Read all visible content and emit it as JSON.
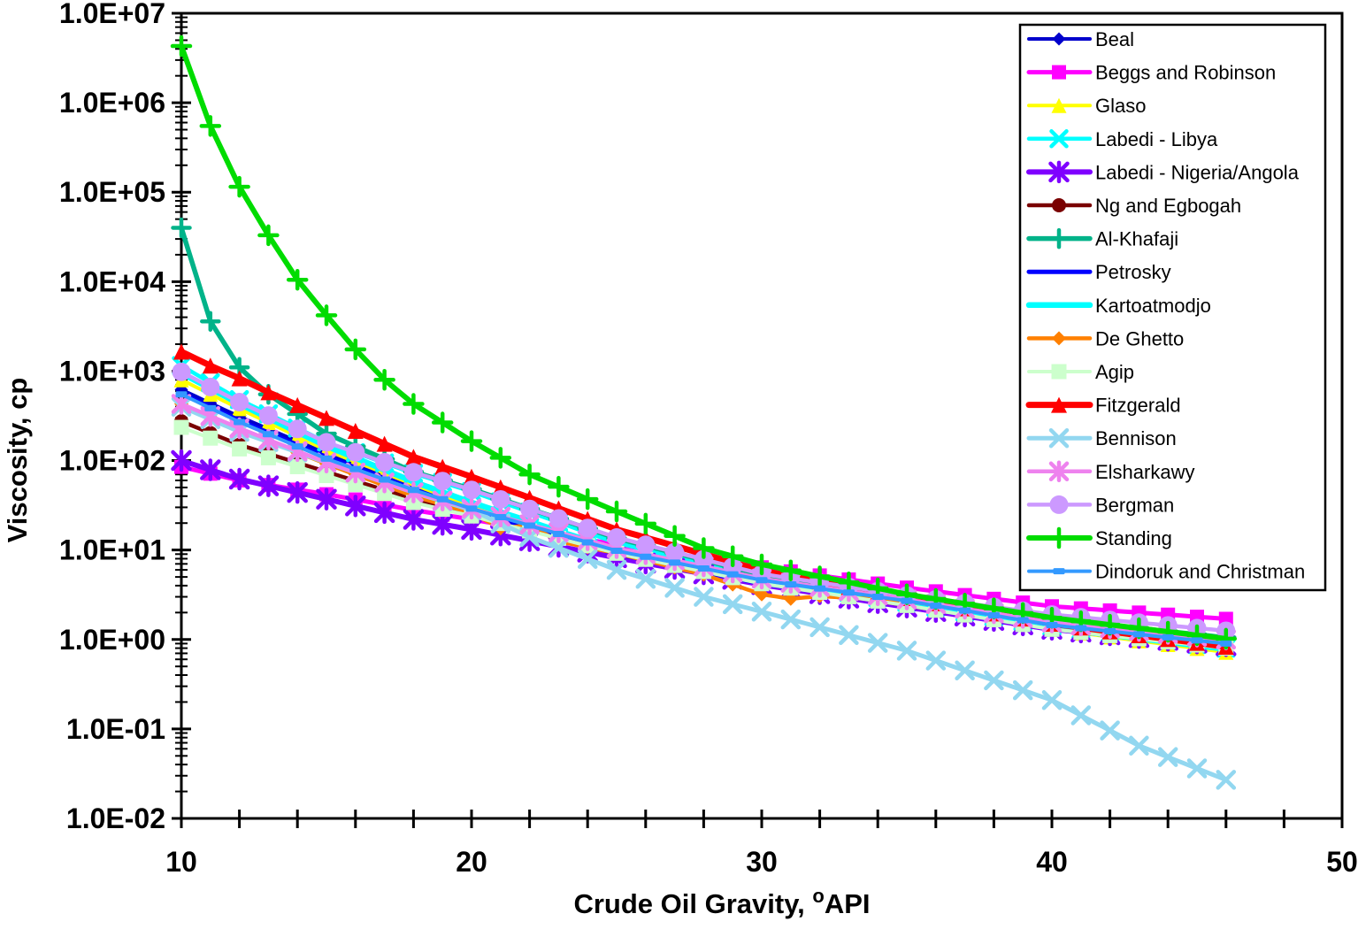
{
  "chart_data": {
    "type": "line",
    "title": "",
    "xlabel": {
      "prefix": "Crude Oil Gravity, ",
      "sup": "o",
      "suffix": "API"
    },
    "ylabel": "Viscosity, cp",
    "x_axis": {
      "min": 10,
      "max": 50,
      "major_ticks": [
        10,
        20,
        30,
        40,
        50
      ],
      "minor_step": 2
    },
    "y_axis": {
      "scale": "log",
      "min": 0.01,
      "max": 10000000,
      "tick_labels": [
        "1.0E+07",
        "1.0E+06",
        "1.0E+05",
        "1.0E+04",
        "1.0E+03",
        "1.0E+02",
        "1.0E+01",
        "1.0E+00",
        "1.0E-01",
        "1.0E-02"
      ]
    },
    "grid": false,
    "legend_position": "upper right",
    "marker_api_step": 1,
    "data_api_range": [
      10,
      46
    ],
    "series": [
      {
        "name": "Beal",
        "color": "#0000CC",
        "marker": "diamond",
        "marker_size": 15,
        "line_width": 4,
        "points": [
          [
            10,
            620
          ],
          [
            12,
            310
          ],
          [
            15,
            120
          ],
          [
            18,
            52
          ],
          [
            20,
            30
          ],
          [
            25,
            9.5
          ],
          [
            30,
            4.4
          ],
          [
            35,
            2.6
          ],
          [
            40,
            1.45
          ],
          [
            46,
            0.92
          ]
        ]
      },
      {
        "name": "Beggs and Robinson",
        "color": "#FF00FF",
        "marker": "square",
        "marker_size": 16,
        "line_width": 5,
        "points": [
          [
            10,
            85
          ],
          [
            12,
            60
          ],
          [
            15,
            42
          ],
          [
            18,
            28
          ],
          [
            20,
            22
          ],
          [
            25,
            11.5
          ],
          [
            30,
            6.4
          ],
          [
            35,
            3.8
          ],
          [
            40,
            2.35
          ],
          [
            46,
            1.7
          ]
        ]
      },
      {
        "name": "Glaso",
        "color": "#FFFF00",
        "marker": "triangle",
        "marker_size": 17,
        "line_width": 4,
        "points": [
          [
            10,
            800
          ],
          [
            12,
            380
          ],
          [
            15,
            130
          ],
          [
            18,
            54
          ],
          [
            20,
            30
          ],
          [
            25,
            9.3
          ],
          [
            30,
            4.3
          ],
          [
            35,
            2.4
          ],
          [
            40,
            1.3
          ],
          [
            46,
            0.72
          ]
        ]
      },
      {
        "name": "Labedi - Libya",
        "color": "#00FFFF",
        "marker": "x",
        "marker_size": 17,
        "line_width": 4.5,
        "points": [
          [
            10,
            1150
          ],
          [
            12,
            480
          ],
          [
            15,
            160
          ],
          [
            18,
            72
          ],
          [
            20,
            45
          ],
          [
            25,
            12
          ],
          [
            30,
            4.9
          ],
          [
            35,
            2.6
          ],
          [
            40,
            1.4
          ],
          [
            46,
            0.8
          ]
        ]
      },
      {
        "name": "Labedi - Nigeria/Angola",
        "color": "#7F00FF",
        "marker": "asterisk",
        "marker_size": 19,
        "line_width": 6,
        "points": [
          [
            10,
            100
          ],
          [
            12,
            62
          ],
          [
            15,
            37
          ],
          [
            18,
            22
          ],
          [
            20,
            17
          ],
          [
            25,
            8.2
          ],
          [
            30,
            4.1
          ],
          [
            35,
            2.3
          ],
          [
            40,
            1.3
          ],
          [
            46,
            0.85
          ]
        ]
      },
      {
        "name": "Ng and Egbogah",
        "color": "#7A0000",
        "marker": "circle",
        "marker_size": 16,
        "line_width": 4.5,
        "points": [
          [
            10,
            275
          ],
          [
            12,
            150
          ],
          [
            15,
            75
          ],
          [
            18,
            37
          ],
          [
            20,
            26
          ],
          [
            25,
            9.5
          ],
          [
            30,
            4.3
          ],
          [
            35,
            2.4
          ],
          [
            40,
            1.35
          ],
          [
            46,
            0.88
          ]
        ]
      },
      {
        "name": "Al-Khafaji",
        "color": "#00B389",
        "marker": "plus",
        "marker_size": 19,
        "line_width": 5.5,
        "points": [
          [
            10,
            40000
          ],
          [
            11,
            3600
          ],
          [
            12,
            1100
          ],
          [
            13,
            550
          ],
          [
            15,
            200
          ],
          [
            18,
            75
          ],
          [
            20,
            48
          ],
          [
            25,
            13.5
          ],
          [
            30,
            5.3
          ],
          [
            35,
            2.9
          ],
          [
            40,
            1.7
          ],
          [
            46,
            1.05
          ]
        ]
      },
      {
        "name": "Petrosky",
        "color": "#0000FF",
        "marker": "none",
        "marker_size": 0,
        "line_width": 5,
        "points": [
          [
            10,
            560
          ],
          [
            12,
            280
          ],
          [
            15,
            110
          ],
          [
            18,
            48
          ],
          [
            20,
            28
          ],
          [
            25,
            9
          ],
          [
            30,
            4.2
          ],
          [
            35,
            2.5
          ],
          [
            40,
            1.4
          ],
          [
            46,
            0.88
          ]
        ]
      },
      {
        "name": "Kartoatmodjo",
        "color": "#00FFFF",
        "marker": "none",
        "marker_size": 0,
        "line_width": 6.5,
        "points": [
          [
            10,
            950
          ],
          [
            12,
            430
          ],
          [
            15,
            145
          ],
          [
            18,
            58
          ],
          [
            20,
            34
          ],
          [
            25,
            10
          ],
          [
            30,
            4.5
          ],
          [
            35,
            2.5
          ],
          [
            40,
            1.35
          ],
          [
            46,
            0.78
          ]
        ]
      },
      {
        "name": "De Ghetto",
        "color": "#FF8000",
        "marker": "diamond",
        "marker_size": 16,
        "line_width": 4.5,
        "points": [
          [
            10,
            430
          ],
          [
            12,
            220
          ],
          [
            15,
            92
          ],
          [
            18,
            40
          ],
          [
            20,
            26
          ],
          [
            21,
            17.5
          ],
          [
            22,
            19
          ],
          [
            23,
            12.5
          ],
          [
            25,
            9.2
          ],
          [
            28,
            5.3
          ],
          [
            30,
            3.2
          ],
          [
            31,
            2.85
          ],
          [
            32,
            3.05
          ],
          [
            35,
            2.7
          ],
          [
            40,
            1.5
          ],
          [
            46,
            0.95
          ]
        ]
      },
      {
        "name": "Agip",
        "color": "#CCFFCC",
        "marker": "square",
        "marker_size": 17,
        "line_width": 4,
        "points": [
          [
            10,
            235
          ],
          [
            12,
            135
          ],
          [
            15,
            68
          ],
          [
            18,
            34
          ],
          [
            20,
            24
          ],
          [
            25,
            9.2
          ],
          [
            30,
            4.2
          ],
          [
            35,
            2.4
          ],
          [
            40,
            1.3
          ],
          [
            46,
            0.8
          ]
        ]
      },
      {
        "name": "Fitzgerald",
        "color": "#FF0000",
        "marker": "triangle",
        "marker_size": 18,
        "line_width": 7,
        "points": [
          [
            10,
            1650
          ],
          [
            11,
            1150
          ],
          [
            12,
            830
          ],
          [
            13,
            580
          ],
          [
            15,
            300
          ],
          [
            18,
            110
          ],
          [
            20,
            66
          ],
          [
            25,
            17
          ],
          [
            30,
            5.9
          ],
          [
            35,
            2.9
          ],
          [
            40,
            1.5
          ],
          [
            46,
            0.83
          ]
        ]
      },
      {
        "name": "Bennison",
        "color": "#92D7F0",
        "marker": "x",
        "marker_size": 18,
        "line_width": 5,
        "points": [
          [
            10,
            400
          ],
          [
            12,
            210
          ],
          [
            15,
            95
          ],
          [
            18,
            44
          ],
          [
            20,
            28
          ],
          [
            22,
            14
          ],
          [
            25,
            6.0
          ],
          [
            28,
            3.0
          ],
          [
            30,
            2.05
          ],
          [
            35,
            0.75
          ],
          [
            40,
            0.21
          ],
          [
            43,
            0.065
          ],
          [
            46,
            0.027
          ]
        ]
      },
      {
        "name": "Elsharkawy",
        "color": "#EE82EE",
        "marker": "asterisk",
        "marker_size": 18,
        "line_width": 4.5,
        "points": [
          [
            10,
            430
          ],
          [
            12,
            230
          ],
          [
            15,
            95
          ],
          [
            18,
            44
          ],
          [
            20,
            29
          ],
          [
            25,
            10.5
          ],
          [
            30,
            4.8
          ],
          [
            35,
            2.8
          ],
          [
            40,
            1.55
          ],
          [
            46,
            1.0
          ]
        ]
      },
      {
        "name": "Bergman",
        "color": "#CC99FF",
        "marker": "circle",
        "marker_size": 21,
        "line_width": 4.5,
        "points": [
          [
            10,
            980
          ],
          [
            12,
            450
          ],
          [
            15,
            160
          ],
          [
            18,
            74
          ],
          [
            20,
            47
          ],
          [
            25,
            13.8
          ],
          [
            30,
            5.4
          ],
          [
            35,
            3.1
          ],
          [
            40,
            1.9
          ],
          [
            46,
            1.25
          ]
        ]
      },
      {
        "name": "Standing",
        "color": "#00DC00",
        "marker": "plus",
        "marker_size": 20,
        "line_width": 6,
        "points": [
          [
            10,
            4300000
          ],
          [
            11,
            550000
          ],
          [
            12,
            115000
          ],
          [
            13,
            33000
          ],
          [
            14,
            10500
          ],
          [
            15,
            4200
          ],
          [
            16,
            1750
          ],
          [
            17,
            800
          ],
          [
            18,
            430
          ],
          [
            20,
            165
          ],
          [
            22,
            70
          ],
          [
            25,
            27
          ],
          [
            28,
            10.5
          ],
          [
            30,
            6.9
          ],
          [
            35,
            3.2
          ],
          [
            40,
            1.75
          ],
          [
            46,
            1.02
          ]
        ]
      },
      {
        "name": "Dindoruk and Christman",
        "color": "#3399FF",
        "marker": "dash",
        "marker_size": 13,
        "line_width": 4,
        "points": [
          [
            10,
            550
          ],
          [
            12,
            270
          ],
          [
            15,
            105
          ],
          [
            18,
            47
          ],
          [
            20,
            29
          ],
          [
            25,
            9.8
          ],
          [
            30,
            4.6
          ],
          [
            35,
            2.7
          ],
          [
            40,
            1.45
          ],
          [
            46,
            0.9
          ]
        ]
      }
    ]
  }
}
